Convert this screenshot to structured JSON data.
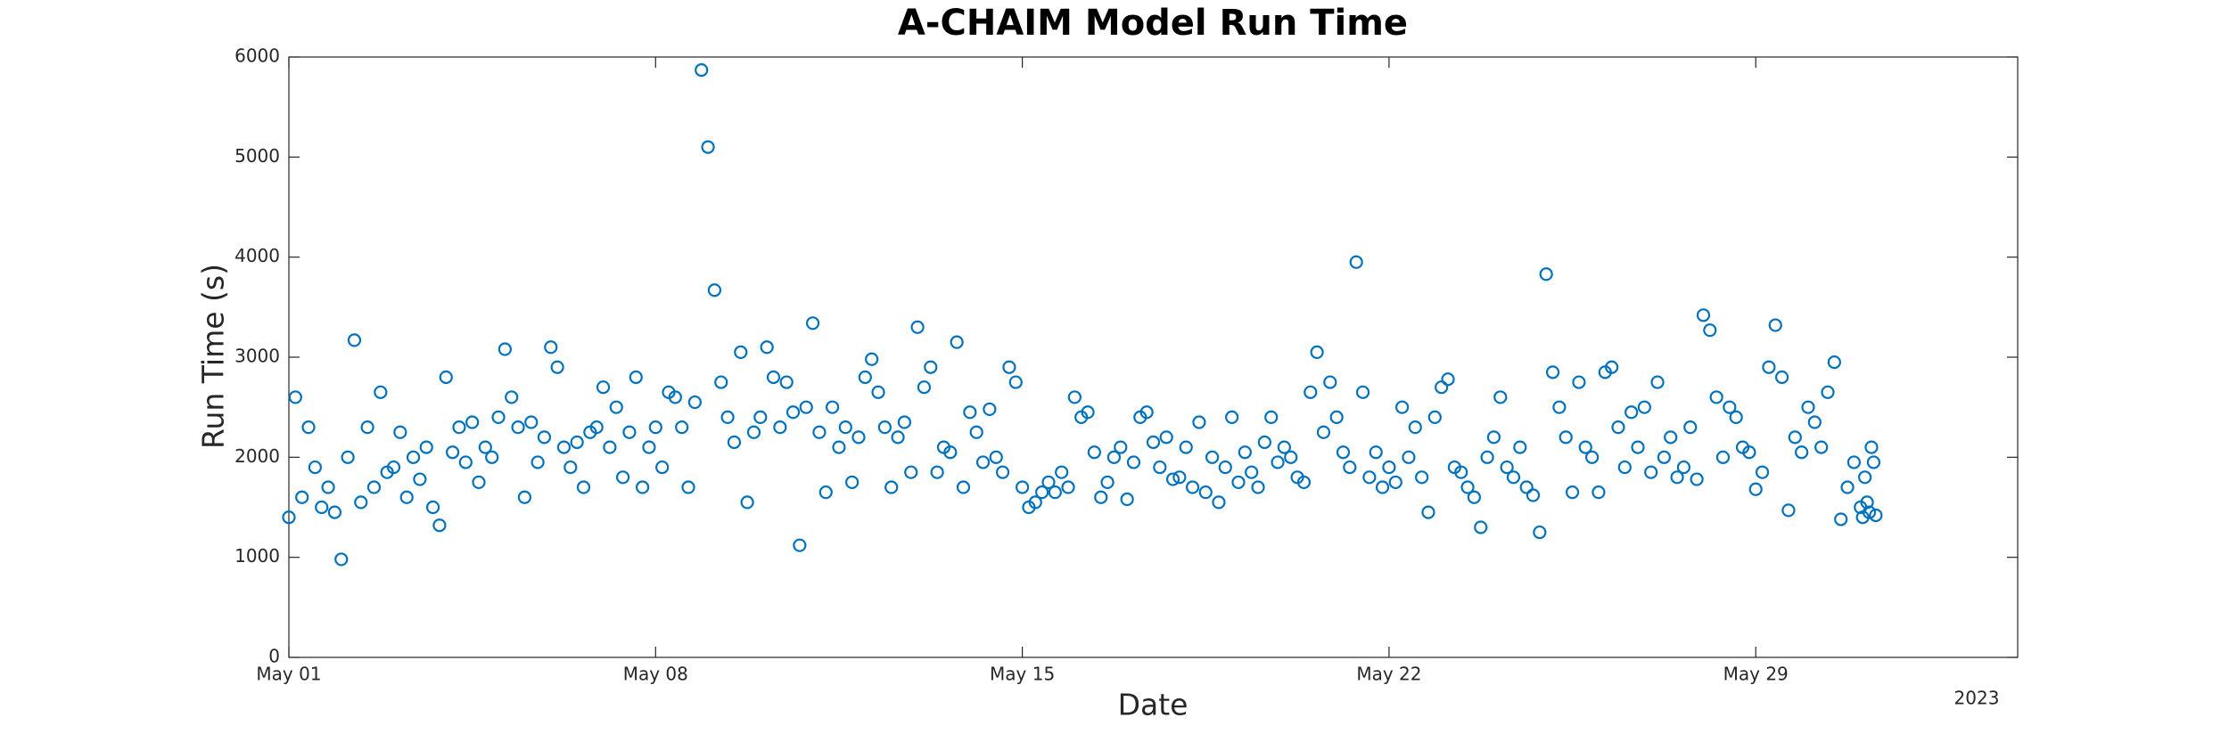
{
  "chart_data": {
    "type": "scatter",
    "title": "A-CHAIM Model Run Time",
    "xlabel": "Date",
    "ylabel": "Run Time (s)",
    "x_year_label": "2023",
    "color": "#0072BD",
    "xlim": [
      "2023-05-01T00:00",
      "2023-06-03T00:00"
    ],
    "xticks": [
      {
        "value": "2023-05-01T00:00",
        "label": "May 01"
      },
      {
        "value": "2023-05-08T00:00",
        "label": "May 08"
      },
      {
        "value": "2023-05-15T00:00",
        "label": "May 15"
      },
      {
        "value": "2023-05-22T00:00",
        "label": "May 22"
      },
      {
        "value": "2023-05-29T00:00",
        "label": "May 29"
      }
    ],
    "ylim": [
      0,
      6000
    ],
    "yticks": [
      0,
      1000,
      2000,
      3000,
      4000,
      5000,
      6000
    ],
    "grid": false,
    "x": [
      "2023-05-01T00:00",
      "2023-05-01T03:00",
      "2023-05-01T06:00",
      "2023-05-01T09:00",
      "2023-05-01T12:00",
      "2023-05-01T15:00",
      "2023-05-01T18:00",
      "2023-05-01T21:00",
      "2023-05-02T00:00",
      "2023-05-02T03:00",
      "2023-05-02T06:00",
      "2023-05-02T09:00",
      "2023-05-02T12:00",
      "2023-05-02T15:00",
      "2023-05-02T18:00",
      "2023-05-02T21:00",
      "2023-05-03T00:00",
      "2023-05-03T03:00",
      "2023-05-03T06:00",
      "2023-05-03T09:00",
      "2023-05-03T12:00",
      "2023-05-03T15:00",
      "2023-05-03T18:00",
      "2023-05-03T21:00",
      "2023-05-04T00:00",
      "2023-05-04T03:00",
      "2023-05-04T06:00",
      "2023-05-04T09:00",
      "2023-05-04T12:00",
      "2023-05-04T15:00",
      "2023-05-04T18:00",
      "2023-05-04T21:00",
      "2023-05-05T00:00",
      "2023-05-05T03:00",
      "2023-05-05T06:00",
      "2023-05-05T09:00",
      "2023-05-05T12:00",
      "2023-05-05T15:00",
      "2023-05-05T18:00",
      "2023-05-05T21:00",
      "2023-05-06T00:00",
      "2023-05-06T03:00",
      "2023-05-06T06:00",
      "2023-05-06T09:00",
      "2023-05-06T12:00",
      "2023-05-06T15:00",
      "2023-05-06T18:00",
      "2023-05-06T21:00",
      "2023-05-07T00:00",
      "2023-05-07T03:00",
      "2023-05-07T06:00",
      "2023-05-07T09:00",
      "2023-05-07T12:00",
      "2023-05-07T15:00",
      "2023-05-07T18:00",
      "2023-05-07T21:00",
      "2023-05-08T00:00",
      "2023-05-08T03:00",
      "2023-05-08T06:00",
      "2023-05-08T09:00",
      "2023-05-08T12:00",
      "2023-05-08T15:00",
      "2023-05-08T18:00",
      "2023-05-08T21:00",
      "2023-05-09T00:00",
      "2023-05-09T03:00",
      "2023-05-09T06:00",
      "2023-05-09T09:00",
      "2023-05-09T12:00",
      "2023-05-09T15:00",
      "2023-05-09T18:00",
      "2023-05-09T21:00",
      "2023-05-10T00:00",
      "2023-05-10T03:00",
      "2023-05-10T06:00",
      "2023-05-10T09:00",
      "2023-05-10T12:00",
      "2023-05-10T15:00",
      "2023-05-10T18:00",
      "2023-05-10T21:00",
      "2023-05-11T00:00",
      "2023-05-11T03:00",
      "2023-05-11T06:00",
      "2023-05-11T09:00",
      "2023-05-11T12:00",
      "2023-05-11T15:00",
      "2023-05-11T18:00",
      "2023-05-11T21:00",
      "2023-05-12T00:00",
      "2023-05-12T03:00",
      "2023-05-12T06:00",
      "2023-05-12T09:00",
      "2023-05-12T12:00",
      "2023-05-12T15:00",
      "2023-05-12T18:00",
      "2023-05-12T21:00",
      "2023-05-13T00:00",
      "2023-05-13T03:00",
      "2023-05-13T06:00",
      "2023-05-13T09:00",
      "2023-05-13T12:00",
      "2023-05-13T15:00",
      "2023-05-13T18:00",
      "2023-05-13T21:00",
      "2023-05-14T00:00",
      "2023-05-14T03:00",
      "2023-05-14T06:00",
      "2023-05-14T09:00",
      "2023-05-14T12:00",
      "2023-05-14T15:00",
      "2023-05-14T18:00",
      "2023-05-14T21:00",
      "2023-05-15T00:00",
      "2023-05-15T03:00",
      "2023-05-15T06:00",
      "2023-05-15T09:00",
      "2023-05-15T12:00",
      "2023-05-15T15:00",
      "2023-05-15T18:00",
      "2023-05-15T21:00",
      "2023-05-16T00:00",
      "2023-05-16T03:00",
      "2023-05-16T06:00",
      "2023-05-16T09:00",
      "2023-05-16T12:00",
      "2023-05-16T15:00",
      "2023-05-16T18:00",
      "2023-05-16T21:00",
      "2023-05-17T00:00",
      "2023-05-17T03:00",
      "2023-05-17T06:00",
      "2023-05-17T09:00",
      "2023-05-17T12:00",
      "2023-05-17T15:00",
      "2023-05-17T18:00",
      "2023-05-17T21:00",
      "2023-05-18T00:00",
      "2023-05-18T03:00",
      "2023-05-18T06:00",
      "2023-05-18T09:00",
      "2023-05-18T12:00",
      "2023-05-18T15:00",
      "2023-05-18T18:00",
      "2023-05-18T21:00",
      "2023-05-19T00:00",
      "2023-05-19T03:00",
      "2023-05-19T06:00",
      "2023-05-19T09:00",
      "2023-05-19T12:00",
      "2023-05-19T15:00",
      "2023-05-19T18:00",
      "2023-05-19T21:00",
      "2023-05-20T00:00",
      "2023-05-20T03:00",
      "2023-05-20T06:00",
      "2023-05-20T09:00",
      "2023-05-20T12:00",
      "2023-05-20T15:00",
      "2023-05-20T18:00",
      "2023-05-20T21:00",
      "2023-05-21T00:00",
      "2023-05-21T03:00",
      "2023-05-21T06:00",
      "2023-05-21T09:00",
      "2023-05-21T12:00",
      "2023-05-21T15:00",
      "2023-05-21T18:00",
      "2023-05-21T21:00",
      "2023-05-22T00:00",
      "2023-05-22T03:00",
      "2023-05-22T06:00",
      "2023-05-22T09:00",
      "2023-05-22T12:00",
      "2023-05-22T15:00",
      "2023-05-22T18:00",
      "2023-05-22T21:00",
      "2023-05-23T00:00",
      "2023-05-23T03:00",
      "2023-05-23T06:00",
      "2023-05-23T09:00",
      "2023-05-23T12:00",
      "2023-05-23T15:00",
      "2023-05-23T18:00",
      "2023-05-23T21:00",
      "2023-05-24T00:00",
      "2023-05-24T03:00",
      "2023-05-24T06:00",
      "2023-05-24T09:00",
      "2023-05-24T12:00",
      "2023-05-24T15:00",
      "2023-05-24T18:00",
      "2023-05-24T21:00",
      "2023-05-25T00:00",
      "2023-05-25T03:00",
      "2023-05-25T06:00",
      "2023-05-25T09:00",
      "2023-05-25T12:00",
      "2023-05-25T15:00",
      "2023-05-25T18:00",
      "2023-05-25T21:00",
      "2023-05-26T00:00",
      "2023-05-26T03:00",
      "2023-05-26T06:00",
      "2023-05-26T09:00",
      "2023-05-26T12:00",
      "2023-05-26T15:00",
      "2023-05-26T18:00",
      "2023-05-26T21:00",
      "2023-05-27T00:00",
      "2023-05-27T03:00",
      "2023-05-27T06:00",
      "2023-05-27T09:00",
      "2023-05-27T12:00",
      "2023-05-27T15:00",
      "2023-05-27T18:00",
      "2023-05-27T21:00",
      "2023-05-28T00:00",
      "2023-05-28T03:00",
      "2023-05-28T06:00",
      "2023-05-28T09:00",
      "2023-05-28T12:00",
      "2023-05-28T15:00",
      "2023-05-28T18:00",
      "2023-05-28T21:00",
      "2023-05-29T00:00",
      "2023-05-29T03:00",
      "2023-05-29T06:00",
      "2023-05-29T09:00",
      "2023-05-29T12:00",
      "2023-05-29T15:00",
      "2023-05-29T18:00",
      "2023-05-29T21:00",
      "2023-05-30T00:00",
      "2023-05-30T03:00",
      "2023-05-30T06:00",
      "2023-05-30T09:00",
      "2023-05-30T12:00",
      "2023-05-30T15:00",
      "2023-05-30T18:00",
      "2023-05-30T21:00",
      "2023-05-31T00:00",
      "2023-05-31T01:00",
      "2023-05-31T02:00",
      "2023-05-31T03:00",
      "2023-05-31T04:00",
      "2023-05-31T05:00",
      "2023-05-31T06:00",
      "2023-05-31T07:00"
    ],
    "values": [
      1400,
      2600,
      1600,
      2300,
      1900,
      1500,
      1700,
      1450,
      980,
      2000,
      3170,
      1550,
      2300,
      1700,
      2650,
      1850,
      1900,
      2250,
      1600,
      2000,
      1780,
      2100,
      1500,
      1320,
      2800,
      2050,
      2300,
      1950,
      2350,
      1750,
      2100,
      2000,
      2400,
      3080,
      2600,
      2300,
      1600,
      2350,
      1950,
      2200,
      3100,
      2900,
      2100,
      1900,
      2150,
      1700,
      2250,
      2300,
      2700,
      2100,
      2500,
      1800,
      2250,
      2800,
      1700,
      2100,
      2300,
      1900,
      2650,
      2600,
      2300,
      1700,
      2550,
      5870,
      5100,
      3670,
      2750,
      2400,
      2150,
      3050,
      1550,
      2250,
      2400,
      3100,
      2800,
      2300,
      2750,
      2450,
      1120,
      2500,
      3340,
      2250,
      1650,
      2500,
      2100,
      2300,
      1750,
      2200,
      2800,
      2980,
      2650,
      2300,
      1700,
      2200,
      2350,
      1850,
      3300,
      2700,
      2900,
      1850,
      2100,
      2050,
      3150,
      1700,
      2450,
      2250,
      1950,
      2480,
      2000,
      1850,
      2900,
      2750,
      1700,
      1500,
      1550,
      1650,
      1750,
      1650,
      1850,
      1700,
      2600,
      2400,
      2450,
      2050,
      1600,
      1750,
      2000,
      2100,
      1580,
      1950,
      2400,
      2450,
      2150,
      1900,
      2200,
      1780,
      1800,
      2100,
      1700,
      2350,
      1650,
      2000,
      1550,
      1900,
      2400,
      1750,
      2050,
      1850,
      1700,
      2150,
      2400,
      1950,
      2100,
      2000,
      1800,
      1750,
      2650,
      3050,
      2250,
      2750,
      2400,
      2050,
      1900,
      3950,
      2650,
      1800,
      2050,
      1700,
      1900,
      1750,
      2500,
      2000,
      2300,
      1800,
      1450,
      2400,
      2700,
      2780,
      1900,
      1850,
      1700,
      1600,
      1300,
      2000,
      2200,
      2600,
      1900,
      1800,
      2100,
      1700,
      1620,
      1250,
      3830,
      2850,
      2500,
      2200,
      1650,
      2750,
      2100,
      2000,
      1650,
      2850,
      2900,
      2300,
      1900,
      2450,
      2100,
      2500,
      1850,
      2750,
      2000,
      2200,
      1800,
      1900,
      2300,
      1780,
      3420,
      3270,
      2600,
      2000,
      2500,
      2400,
      2100,
      2050,
      1680,
      1850,
      2900,
      3320,
      2800,
      1470,
      2200,
      2050,
      2500,
      2350,
      2100,
      2650,
      2950,
      1380,
      1700,
      1950,
      1500,
      1400,
      1800,
      1550,
      1450,
      2100,
      1950,
      1420
    ]
  }
}
